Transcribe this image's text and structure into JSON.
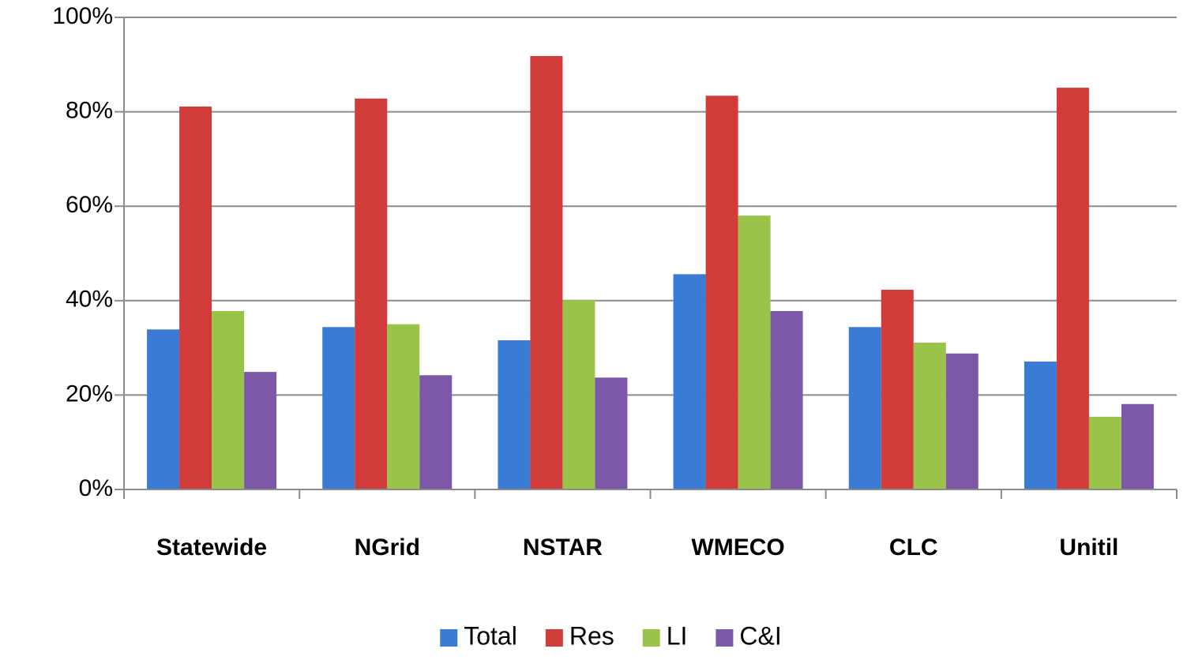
{
  "chart_data": {
    "type": "bar",
    "categories": [
      "Statewide",
      "NGrid",
      "NSTAR",
      "WMECO",
      "CLC",
      "Unitil"
    ],
    "series": [
      {
        "name": "Total",
        "color": "#3a7bd5",
        "values": [
          33.9,
          34.4,
          31.6,
          45.6,
          34.4,
          27.1
        ]
      },
      {
        "name": "Res",
        "color": "#d13b39",
        "values": [
          81.1,
          82.8,
          91.8,
          83.4,
          42.3,
          85.1
        ]
      },
      {
        "name": "LI",
        "color": "#9ac449",
        "values": [
          37.8,
          35,
          40.1,
          58,
          31.1,
          15.4
        ]
      },
      {
        "name": "C&I",
        "color": "#7d58a8",
        "values": [
          24.9,
          24.2,
          23.7,
          37.8,
          28.8,
          18.1
        ]
      }
    ],
    "ylim": [
      0,
      100
    ],
    "yticks": [
      {
        "value": 0,
        "label": "0%"
      },
      {
        "value": 20,
        "label": "20%"
      },
      {
        "value": 40,
        "label": "40%"
      },
      {
        "value": 60,
        "label": "60%"
      },
      {
        "value": 80,
        "label": "80%"
      },
      {
        "value": 100,
        "label": "100%"
      }
    ],
    "grid": true,
    "legend": "bottom"
  }
}
